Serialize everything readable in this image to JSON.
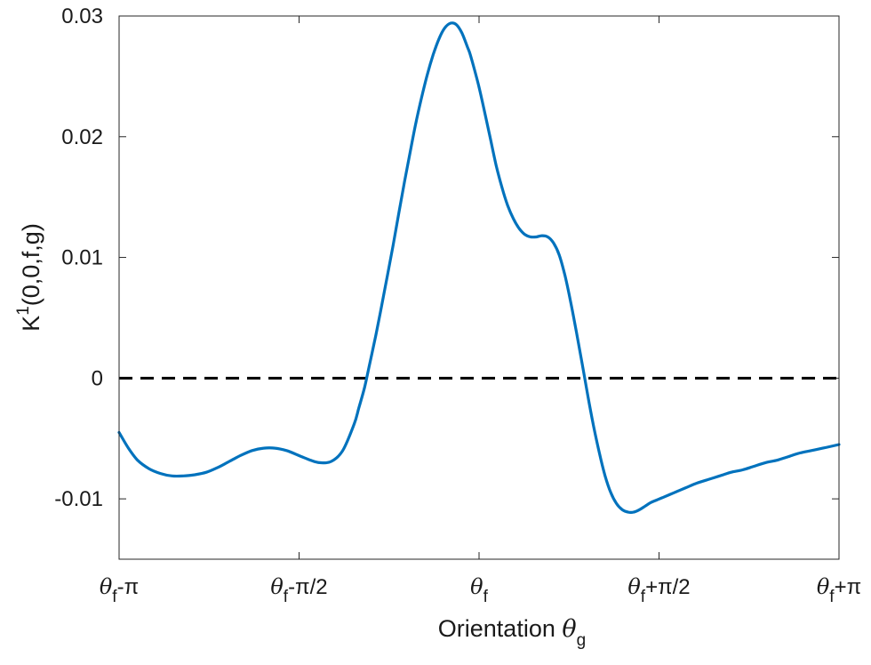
{
  "chart_data": {
    "type": "line",
    "xlabel": {
      "text": "Orientation ",
      "symbol": "θ",
      "subscript": "g"
    },
    "ylabel": {
      "main": "K",
      "sup": "1",
      "rest": "(0,0,f,g)"
    },
    "xlim": [
      -3.14159,
      3.14159
    ],
    "ylim": [
      -0.015,
      0.03
    ],
    "x_ticks": [
      {
        "value": -3.14159,
        "symbol": "θ",
        "sub": "f",
        "suffix": "-π"
      },
      {
        "value": -1.5708,
        "symbol": "θ",
        "sub": "f",
        "suffix": "-π/2"
      },
      {
        "value": 0,
        "symbol": "θ",
        "sub": "f",
        "suffix": ""
      },
      {
        "value": 1.5708,
        "symbol": "θ",
        "sub": "f",
        "suffix": "+π/2"
      },
      {
        "value": 3.14159,
        "symbol": "θ",
        "sub": "f",
        "suffix": "+π"
      }
    ],
    "y_ticks": [
      {
        "value": -0.01,
        "label": "-0.01"
      },
      {
        "value": 0,
        "label": "0"
      },
      {
        "value": 0.01,
        "label": "0.01"
      },
      {
        "value": 0.02,
        "label": "0.02"
      },
      {
        "value": 0.03,
        "label": "0.03"
      }
    ],
    "grid": false,
    "box": true,
    "reference_line": {
      "y": 0,
      "style": "dashed",
      "color": "#000000"
    },
    "series": [
      {
        "color": "#0072BD",
        "x": [
          -3.1416,
          -3.06,
          -2.98,
          -2.88,
          -2.78,
          -2.68,
          -2.58,
          -2.48,
          -2.38,
          -2.28,
          -2.18,
          -2.08,
          -1.98,
          -1.88,
          -1.78,
          -1.68,
          -1.6,
          -1.55,
          -1.47,
          -1.39,
          -1.29,
          -1.19,
          -1.09,
          -1.05,
          -1.0,
          -0.97,
          -0.94,
          -0.9,
          -0.85,
          -0.8,
          -0.75,
          -0.7,
          -0.65,
          -0.6,
          -0.55,
          -0.5,
          -0.45,
          -0.4,
          -0.35,
          -0.3,
          -0.25,
          -0.2,
          -0.15,
          -0.1,
          -0.08,
          -0.05,
          0.0,
          0.05,
          0.1,
          0.15,
          0.2,
          0.25,
          0.3,
          0.35,
          0.4,
          0.45,
          0.5,
          0.55,
          0.6,
          0.65,
          0.7,
          0.75,
          0.8,
          0.85,
          0.9,
          0.95,
          1.0,
          1.05,
          1.1,
          1.15,
          1.2,
          1.25,
          1.3,
          1.35,
          1.4,
          1.45,
          1.5,
          1.55,
          1.6,
          1.7,
          1.8,
          1.9,
          2.0,
          2.1,
          2.2,
          2.3,
          2.4,
          2.5,
          2.6,
          2.7,
          2.8,
          2.9,
          3.0,
          3.1416
        ],
        "y": [
          -0.0045,
          -0.0058,
          -0.0068,
          -0.0075,
          -0.0079,
          -0.0081,
          -0.0081,
          -0.008,
          -0.0078,
          -0.0074,
          -0.0069,
          -0.0064,
          -0.006,
          -0.0058,
          -0.0058,
          -0.006,
          -0.0063,
          -0.0065,
          -0.0068,
          -0.007,
          -0.0069,
          -0.006,
          -0.0038,
          -0.0025,
          -0.0008,
          0.0005,
          0.0018,
          0.0036,
          0.006,
          0.0085,
          0.011,
          0.0137,
          0.0163,
          0.0188,
          0.0212,
          0.0233,
          0.0252,
          0.0268,
          0.0281,
          0.029,
          0.0294,
          0.0293,
          0.0286,
          0.0274,
          0.0269,
          0.0259,
          0.0241,
          0.022,
          0.0198,
          0.0176,
          0.0158,
          0.0143,
          0.0132,
          0.0124,
          0.0119,
          0.0117,
          0.0117,
          0.0118,
          0.0117,
          0.0112,
          0.0102,
          0.0085,
          0.0063,
          0.0038,
          0.0012,
          -0.0015,
          -0.004,
          -0.0062,
          -0.0081,
          -0.0095,
          -0.0104,
          -0.0109,
          -0.0111,
          -0.0111,
          -0.0109,
          -0.0106,
          -0.0103,
          -0.0101,
          -0.0099,
          -0.0095,
          -0.0091,
          -0.0087,
          -0.0084,
          -0.0081,
          -0.0078,
          -0.0076,
          -0.0073,
          -0.007,
          -0.0068,
          -0.0065,
          -0.0062,
          -0.006,
          -0.0058,
          -0.0055
        ]
      }
    ]
  }
}
